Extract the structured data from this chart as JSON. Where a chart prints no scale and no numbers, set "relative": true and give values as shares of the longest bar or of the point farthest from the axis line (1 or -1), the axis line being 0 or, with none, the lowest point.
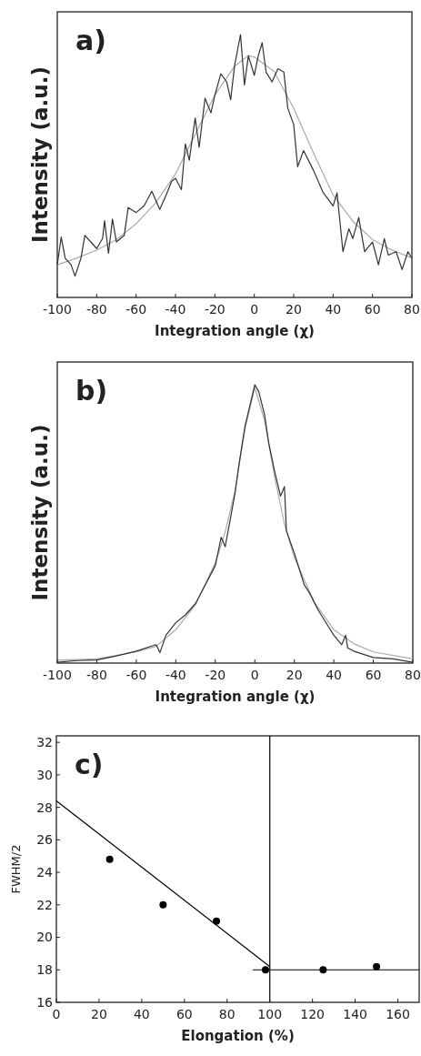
{
  "chart_data": [
    {
      "type": "line",
      "title": "a)",
      "xlabel": "Integration angle (χ)",
      "ylabel": "Intensity (a.u.)",
      "relative": true,
      "tick_labels": "x",
      "xlim": [
        -100,
        80
      ],
      "xticks": [
        -100,
        -80,
        -60,
        -40,
        -20,
        0,
        20,
        40,
        60,
        80
      ],
      "line_style": "solid",
      "series": [
        {
          "color": "#aaaaaa",
          "x": [
            -100,
            -90,
            -80,
            -70,
            -60,
            -50,
            -40,
            -30,
            -20,
            -10,
            -3,
            0,
            10,
            20,
            30,
            40,
            50,
            60,
            70,
            80
          ],
          "values": [
            0.124,
            0.15,
            0.18,
            0.22,
            0.28,
            0.36,
            0.47,
            0.62,
            0.77,
            0.88,
            0.92,
            0.915,
            0.86,
            0.72,
            0.55,
            0.39,
            0.29,
            0.22,
            0.18,
            0.15
          ]
        },
        {
          "color": "#333333",
          "x": [
            -100,
            -98,
            -96,
            -93,
            -91,
            -88,
            -86,
            -83,
            -80,
            -77,
            -76,
            -74,
            -72,
            -70,
            -66,
            -64,
            -60,
            -56,
            -52,
            -48,
            -45,
            -42,
            -40,
            -37,
            -35,
            -33,
            -30,
            -28,
            -25,
            -22,
            -20,
            -17,
            -14,
            -12,
            -10,
            -7,
            -5,
            -3,
            0,
            2,
            4,
            6,
            9,
            12,
            15,
            17,
            20,
            22,
            25,
            30,
            35,
            40,
            42,
            45,
            48,
            50,
            53,
            56,
            60,
            63,
            66,
            68,
            72,
            75,
            78,
            80
          ],
          "values": [
            0.124,
            0.23,
            0.149,
            0.124,
            0.081,
            0.149,
            0.236,
            0.211,
            0.186,
            0.224,
            0.292,
            0.168,
            0.298,
            0.211,
            0.236,
            0.342,
            0.323,
            0.348,
            0.404,
            0.335,
            0.385,
            0.441,
            0.453,
            0.41,
            0.584,
            0.522,
            0.683,
            0.571,
            0.758,
            0.702,
            0.77,
            0.851,
            0.82,
            0.752,
            0.882,
            1.0,
            0.808,
            0.919,
            0.845,
            0.919,
            0.969,
            0.857,
            0.82,
            0.87,
            0.857,
            0.72,
            0.658,
            0.497,
            0.559,
            0.484,
            0.398,
            0.348,
            0.398,
            0.174,
            0.261,
            0.224,
            0.304,
            0.174,
            0.211,
            0.124,
            0.224,
            0.161,
            0.174,
            0.106,
            0.174,
            0.149
          ]
        }
      ]
    },
    {
      "type": "line",
      "title": "b)",
      "xlabel": "Integration angle (χ)",
      "ylabel": "Intensity (a.u.)",
      "relative": true,
      "tick_labels": "x",
      "xlim": [
        -100,
        80
      ],
      "xticks": [
        -100,
        -80,
        -60,
        -40,
        -20,
        0,
        20,
        40,
        60,
        80
      ],
      "line_style": "solid",
      "series": [
        {
          "color": "#aaaaaa",
          "x": [
            -100,
            -80,
            -60,
            -50,
            -40,
            -30,
            -20,
            -15,
            -10,
            -5,
            0,
            5,
            10,
            15,
            20,
            30,
            40,
            50,
            60,
            80
          ],
          "values": [
            0.01,
            0.015,
            0.04,
            0.06,
            0.12,
            0.21,
            0.36,
            0.47,
            0.62,
            0.84,
            0.99,
            0.87,
            0.67,
            0.5,
            0.38,
            0.22,
            0.12,
            0.07,
            0.04,
            0.015
          ]
        },
        {
          "color": "#333333",
          "x": [
            -100,
            -90,
            -80,
            -70,
            -60,
            -50,
            -48,
            -45,
            -40,
            -35,
            -30,
            -25,
            -20,
            -17,
            -15,
            -12,
            -10,
            -8,
            -5,
            -2,
            0,
            2,
            5,
            7,
            10,
            13,
            15,
            16,
            20,
            25,
            28,
            32,
            37,
            40,
            44,
            46,
            47,
            50,
            60,
            70,
            80
          ],
          "values": [
            0.003,
            0.009,
            0.011,
            0.026,
            0.043,
            0.066,
            0.038,
            0.1,
            0.145,
            0.174,
            0.214,
            0.282,
            0.35,
            0.452,
            0.418,
            0.532,
            0.611,
            0.714,
            0.85,
            0.94,
            1.0,
            0.975,
            0.89,
            0.793,
            0.69,
            0.6,
            0.634,
            0.475,
            0.395,
            0.282,
            0.248,
            0.191,
            0.134,
            0.1,
            0.066,
            0.1,
            0.055,
            0.043,
            0.02,
            0.015,
            0.003
          ]
        }
      ]
    },
    {
      "type": "scatter",
      "title": "c)",
      "xlabel": "Elongation (%)",
      "ylabel": "FWHM/2",
      "xlim": [
        0,
        170
      ],
      "ylim": [
        16,
        32.4
      ],
      "xticks": [
        0,
        20,
        40,
        60,
        80,
        100,
        120,
        140,
        160
      ],
      "yticks": [
        16,
        18,
        20,
        22,
        24,
        26,
        28,
        30,
        32
      ],
      "ref_lines": [
        {
          "axis": "x",
          "value": 100,
          "color": "#000000"
        }
      ],
      "series": [
        {
          "marker": "circle",
          "color": "#000000",
          "x": [
            25,
            50,
            75,
            98,
            125,
            150
          ],
          "values": [
            24.8,
            22,
            21,
            18,
            18,
            18.2
          ]
        },
        {
          "type": "line",
          "color": "#000000",
          "x": [
            0,
            100
          ],
          "values": [
            28.4,
            18.2
          ]
        },
        {
          "type": "line",
          "color": "#000000",
          "x": [
            92,
            170
          ],
          "values": [
            18,
            18
          ]
        }
      ]
    }
  ]
}
